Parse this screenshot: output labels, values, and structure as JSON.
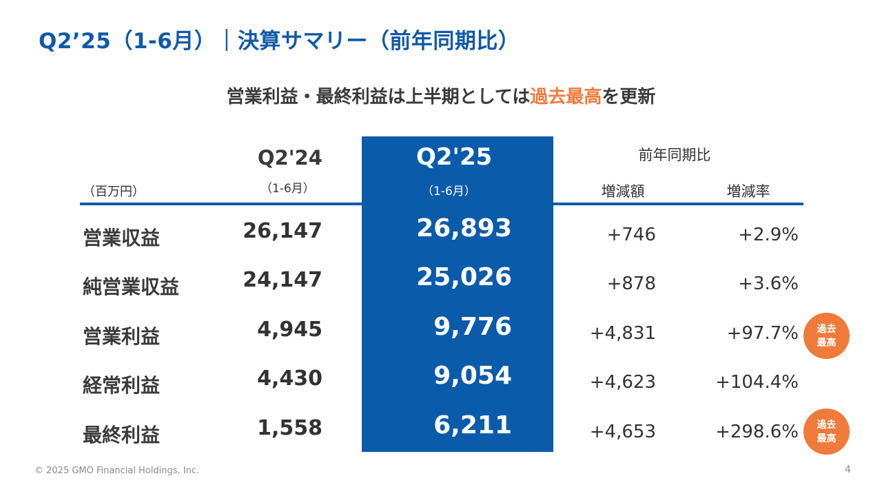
{
  "slide": {
    "title": "Q2’25（1-6月）｜決算サマリー（前年同期比）",
    "headline_prefix": "営業利益・最終利益は上半期としては",
    "headline_highlight": "過去最高",
    "headline_suffix": "を更新",
    "highlight_color": "#f07a3a",
    "accent_color": "#0b5bab"
  },
  "table": {
    "unit_label": "（百万円）",
    "prev_period": "Q2'24",
    "prev_range": "（1-6月）",
    "curr_period": "Q2'25",
    "curr_range": "（1-6月）",
    "yoy_header": "前年同期比",
    "diff_header": "増減額",
    "rate_header": "増減率",
    "rows": [
      {
        "label": "営業収益",
        "prev": "26,147",
        "curr": "26,893",
        "diff": "+746",
        "rate": "+2.9%",
        "badge_line1": "",
        "badge_line2": ""
      },
      {
        "label": "純営業収益",
        "prev": "24,147",
        "curr": "25,026",
        "diff": "+878",
        "rate": "+3.6%",
        "badge_line1": "",
        "badge_line2": ""
      },
      {
        "label": "営業利益",
        "prev": "4,945",
        "curr": "9,776",
        "diff": "+4,831",
        "rate": "+97.7%",
        "badge_line1": "過去",
        "badge_line2": "最高"
      },
      {
        "label": "経常利益",
        "prev": "4,430",
        "curr": "9,054",
        "diff": "+4,623",
        "rate": "+104.4%",
        "badge_line1": "",
        "badge_line2": ""
      },
      {
        "label": "最終利益",
        "prev": "1,558",
        "curr": "6,211",
        "diff": "+4,653",
        "rate": "+298.6%",
        "badge_line1": "過去",
        "badge_line2": "最高"
      }
    ]
  },
  "footer": {
    "copyright": "© 2025 GMO Financial Holdings, Inc.",
    "page_number": "4"
  }
}
